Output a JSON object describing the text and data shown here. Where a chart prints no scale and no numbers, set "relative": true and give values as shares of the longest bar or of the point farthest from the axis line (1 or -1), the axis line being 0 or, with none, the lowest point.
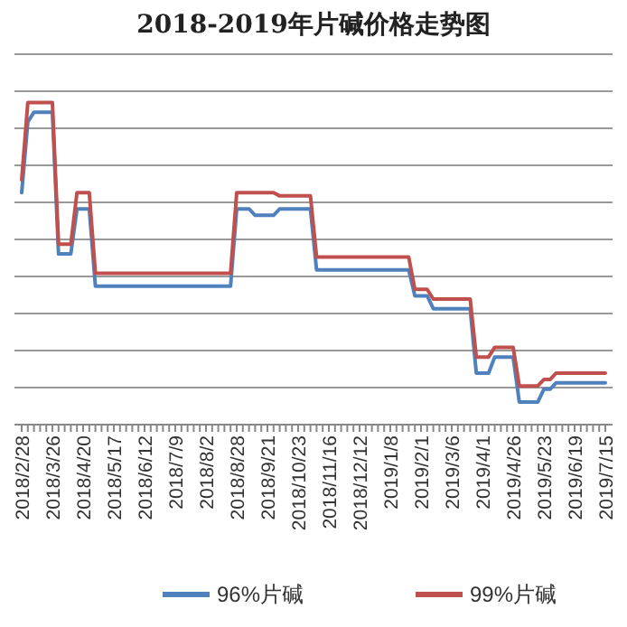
{
  "chart_data": {
    "type": "line",
    "title": "2018-2019年片碱价格走势图",
    "relative": true,
    "grid": "y",
    "legend": "bottom",
    "categories": [
      "2018/2/28",
      null,
      null,
      null,
      null,
      "2018/3/26",
      null,
      null,
      null,
      null,
      "2018/4/20",
      null,
      null,
      null,
      null,
      "2018/5/17",
      null,
      null,
      null,
      null,
      "2018/6/12",
      null,
      null,
      null,
      null,
      "2018/7/9",
      null,
      null,
      null,
      null,
      "2018/8/2",
      null,
      null,
      null,
      null,
      "2018/8/28",
      null,
      null,
      null,
      null,
      "2018/9/21",
      null,
      null,
      null,
      null,
      "2018/10/23",
      null,
      null,
      null,
      null,
      "2018/11/16",
      null,
      null,
      null,
      null,
      "2018/12/12",
      null,
      null,
      null,
      null,
      "2019/1/8",
      null,
      null,
      null,
      null,
      "2019/2/1",
      null,
      null,
      null,
      null,
      "2019/3/6",
      null,
      null,
      null,
      null,
      "2019/4/1",
      null,
      null,
      null,
      null,
      "2019/4/26",
      null,
      null,
      null,
      null,
      "2019/5/23",
      null,
      null,
      null,
      null,
      "2019/6/19",
      null,
      null,
      null,
      null,
      "2019/7/15"
    ],
    "series": [
      {
        "name": "96%片碱",
        "color": "#4f81bd",
        "values": [
          0.72,
          0.94,
          0.97,
          0.97,
          0.97,
          0.97,
          0.53,
          0.53,
          0.53,
          0.67,
          0.67,
          0.67,
          0.43,
          0.43,
          0.43,
          0.43,
          0.43,
          0.43,
          0.43,
          0.43,
          0.43,
          0.43,
          0.43,
          0.43,
          0.43,
          0.43,
          0.43,
          0.43,
          0.43,
          0.43,
          0.43,
          0.43,
          0.43,
          0.43,
          0.43,
          0.67,
          0.67,
          0.67,
          0.65,
          0.65,
          0.65,
          0.65,
          0.67,
          0.67,
          0.67,
          0.67,
          0.67,
          0.67,
          0.48,
          0.48,
          0.48,
          0.48,
          0.48,
          0.48,
          0.48,
          0.48,
          0.48,
          0.48,
          0.48,
          0.48,
          0.48,
          0.48,
          0.48,
          0.48,
          0.4,
          0.4,
          0.4,
          0.36,
          0.36,
          0.36,
          0.36,
          0.36,
          0.36,
          0.36,
          0.16,
          0.16,
          0.16,
          0.21,
          0.21,
          0.21,
          0.21,
          0.07,
          0.07,
          0.07,
          0.07,
          0.11,
          0.11,
          0.13,
          0.13,
          0.13,
          0.13,
          0.13,
          0.13,
          0.13,
          0.13,
          0.13
        ]
      },
      {
        "name": "99%片碱",
        "color": "#c0504d",
        "values": [
          0.76,
          1,
          1,
          1,
          1,
          1,
          0.56,
          0.56,
          0.56,
          0.72,
          0.72,
          0.72,
          0.47,
          0.47,
          0.47,
          0.47,
          0.47,
          0.47,
          0.47,
          0.47,
          0.47,
          0.47,
          0.47,
          0.47,
          0.47,
          0.47,
          0.47,
          0.47,
          0.47,
          0.47,
          0.47,
          0.47,
          0.47,
          0.47,
          0.47,
          0.72,
          0.72,
          0.72,
          0.72,
          0.72,
          0.72,
          0.72,
          0.71,
          0.71,
          0.71,
          0.71,
          0.71,
          0.71,
          0.52,
          0.52,
          0.52,
          0.52,
          0.52,
          0.52,
          0.52,
          0.52,
          0.52,
          0.52,
          0.52,
          0.52,
          0.52,
          0.52,
          0.52,
          0.52,
          0.42,
          0.42,
          0.42,
          0.39,
          0.39,
          0.39,
          0.39,
          0.39,
          0.39,
          0.39,
          0.21,
          0.21,
          0.21,
          0.24,
          0.24,
          0.24,
          0.24,
          0.12,
          0.12,
          0.12,
          0.12,
          0.14,
          0.14,
          0.16,
          0.16,
          0.16,
          0.16,
          0.16,
          0.16,
          0.16,
          0.16,
          0.16
        ]
      }
    ]
  }
}
